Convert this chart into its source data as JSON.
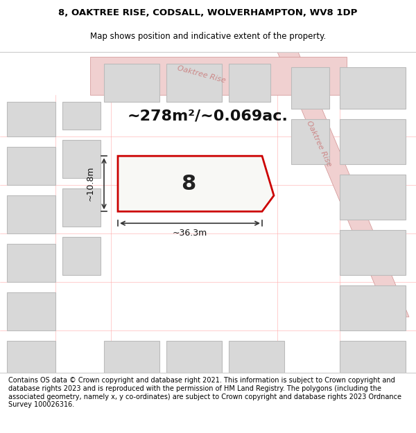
{
  "title_line1": "8, OAKTREE RISE, CODSALL, WOLVERHAMPTON, WV8 1DP",
  "title_line2": "Map shows position and indicative extent of the property.",
  "area_text": "~278m²/~0.069ac.",
  "width_label": "~36.3m",
  "height_label": "~10.8m",
  "plot_number": "8",
  "footer_text": "Contains OS data © Crown copyright and database right 2021. This information is subject to Crown copyright and database rights 2023 and is reproduced with the permission of HM Land Registry. The polygons (including the associated geometry, namely x, y co-ordinates) are subject to Crown copyright and database rights 2023 Ordnance Survey 100026316.",
  "bg_color": "#f5f5f0",
  "map_bg_color": "#f9f9f6",
  "plot_fill": "#f5f5f0",
  "plot_border_color": "#cc0000",
  "road_color": "#e8a0a0",
  "road_label_color": "#cc8888",
  "building_fill": "#dcdcdc",
  "building_border": "#bbbbbb",
  "dim_line_color": "#333333",
  "title_fontsize": 9.5,
  "subtitle_fontsize": 8.5,
  "footer_fontsize": 7.0
}
